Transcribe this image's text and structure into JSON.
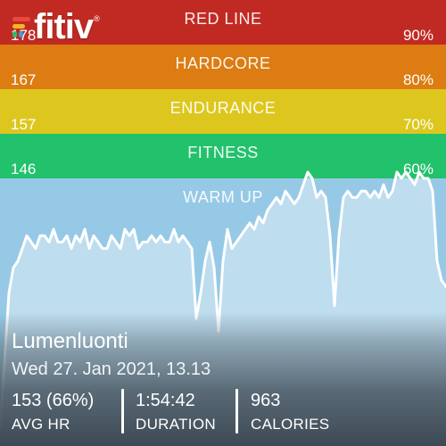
{
  "app": {
    "logo_text": "fitiv",
    "trademark": "®"
  },
  "zones": [
    {
      "key": "red-line",
      "label": "RED LINE",
      "hr": "178",
      "pct": "90%",
      "color": "#c12a22"
    },
    {
      "key": "hardcore",
      "label": "HARDCORE",
      "hr": "167",
      "pct": "80%",
      "color": "#dc7c12"
    },
    {
      "key": "endurance",
      "label": "ENDURANCE",
      "hr": "157",
      "pct": "70%",
      "color": "#ddc71f"
    },
    {
      "key": "fitness",
      "label": "FITNESS",
      "hr": "146",
      "pct": "60%",
      "color": "#22c16b"
    },
    {
      "key": "warm-up",
      "label": "WARM UP",
      "hr": "",
      "pct": "",
      "color": "#96c9e6"
    }
  ],
  "activity": {
    "name": "Lumenluonti",
    "date": "Wed 27. Jan 2021, 13.13"
  },
  "stats": [
    {
      "key": "avg-hr",
      "value": "153 (66%)",
      "label": "AVG HR"
    },
    {
      "key": "duration",
      "value": "1:54:42",
      "label": "DURATION"
    },
    {
      "key": "calories",
      "value": "963",
      "label": "CALORIES"
    }
  ],
  "chart_data": {
    "type": "area",
    "ylim": [
      118,
      188
    ],
    "xlim": [
      0,
      100
    ],
    "x": [
      0,
      1,
      2,
      3,
      4,
      5,
      6,
      7,
      8,
      9,
      10,
      11,
      12,
      13,
      14,
      15,
      16,
      17,
      18,
      19,
      20,
      21,
      22,
      23,
      24,
      25,
      26,
      27,
      28,
      29,
      30,
      31,
      32,
      33,
      34,
      35,
      36,
      37,
      38,
      39,
      40,
      41,
      42,
      43,
      44,
      45,
      46,
      47,
      48,
      49,
      50,
      51,
      52,
      53,
      54,
      55,
      56,
      57,
      58,
      59,
      60,
      61,
      62,
      63,
      64,
      65,
      66,
      67,
      68,
      69,
      70,
      71,
      72,
      73,
      74,
      75,
      76,
      77,
      78,
      79,
      80,
      81,
      82,
      83,
      84,
      85,
      86,
      87,
      88,
      89,
      90,
      91,
      92,
      93,
      94,
      95,
      96,
      97,
      98,
      99,
      100
    ],
    "y": [
      121,
      131,
      142,
      146,
      147,
      149,
      151,
      150,
      149,
      151,
      151,
      150,
      152,
      150,
      150,
      151,
      149,
      151,
      150,
      152,
      149,
      151,
      150,
      149,
      149,
      151,
      150,
      149,
      152,
      151,
      152,
      149,
      150,
      150,
      151,
      150,
      151,
      150,
      150,
      152,
      150,
      151,
      150,
      149,
      138,
      142,
      147,
      150,
      146,
      136,
      147,
      152,
      149,
      150,
      151,
      152,
      153,
      152,
      154,
      153,
      155,
      156,
      157,
      156,
      158,
      157,
      156,
      157,
      159,
      161,
      160,
      157,
      158,
      157,
      151,
      140,
      151,
      157,
      158,
      157,
      157,
      158,
      158,
      157,
      158,
      157,
      159,
      157,
      158,
      161,
      160,
      161,
      160,
      159,
      161,
      160,
      160,
      158,
      147,
      144,
      143
    ]
  }
}
